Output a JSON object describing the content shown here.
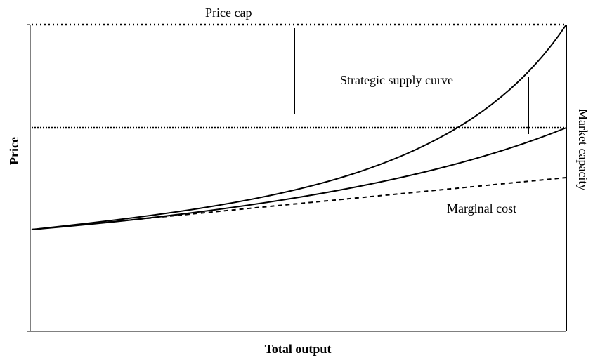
{
  "labels": {
    "price_cap": "Price cap",
    "strategic_supply_curve": "Strategic supply curve",
    "marginal_cost": "Marginal cost",
    "market_capacity": "Market capacity",
    "y_axis": "Price",
    "x_axis": "Total output"
  }
}
